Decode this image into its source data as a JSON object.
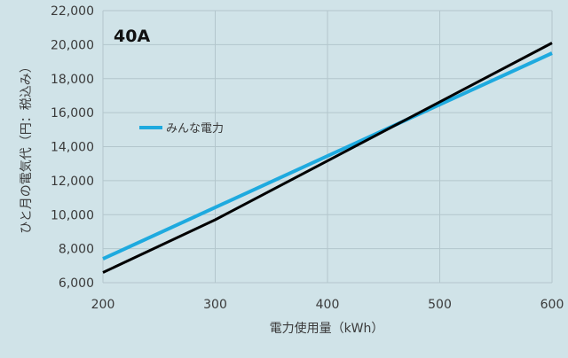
{
  "chart_data": {
    "type": "line",
    "title": "",
    "panel_label": "40A",
    "xlabel": "電力使用量（kWh）",
    "ylabel": "ひと月の電気代（円：税込み）",
    "xlim": [
      200,
      600
    ],
    "ylim": [
      6000,
      22000
    ],
    "x_ticks": [
      200,
      300,
      400,
      500,
      600
    ],
    "x_tick_labels": [
      "200",
      "300",
      "400",
      "500",
      "600"
    ],
    "y_ticks": [
      6000,
      8000,
      10000,
      12000,
      14000,
      16000,
      18000,
      20000,
      22000
    ],
    "y_tick_labels": [
      "6,000",
      "8,000",
      "10,000",
      "12,000",
      "14,000",
      "16,000",
      "18,000",
      "20,000",
      "22,000"
    ],
    "grid": true,
    "legend_position": "upper-left",
    "series": [
      {
        "name": "みんな電力",
        "color": "#1eaadf",
        "legend": true,
        "x": [
          200,
          600
        ],
        "y": [
          7400,
          19500
        ]
      },
      {
        "name": "",
        "color": "#000000",
        "legend": false,
        "x": [
          200,
          300,
          600
        ],
        "y": [
          6600,
          9700,
          20100
        ]
      }
    ]
  },
  "colors": {
    "background": "#d0e3e8",
    "grid": "#b3c6cc",
    "text": "#3a3a3a"
  }
}
